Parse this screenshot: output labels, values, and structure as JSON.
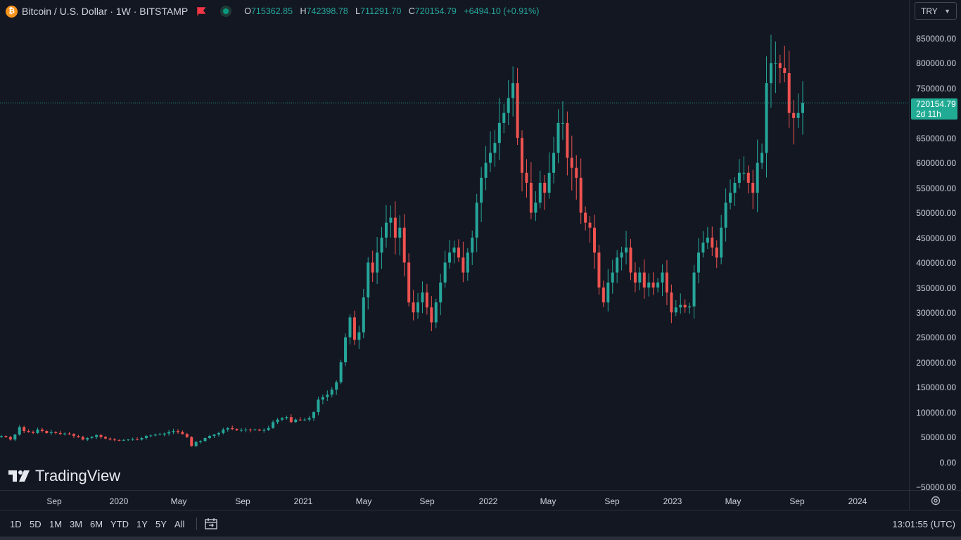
{
  "header": {
    "symbol_title": "Bitcoin / U.S. Dollar · 1W · BITSTAMP",
    "ohlc": [
      {
        "key": "O",
        "value": "715362.85"
      },
      {
        "key": "H",
        "value": "742398.78"
      },
      {
        "key": "L",
        "value": "711291.70"
      },
      {
        "key": "C",
        "value": "720154.79"
      }
    ],
    "change": "+6494.10 (+0.91%)",
    "currency": "TRY"
  },
  "price_axis": {
    "labels": [
      "850000.00",
      "800000.00",
      "750000.00",
      "700000.00",
      "650000.00",
      "600000.00",
      "550000.00",
      "500000.00",
      "450000.00",
      "400000.00",
      "350000.00",
      "300000.00",
      "250000.00",
      "200000.00",
      "150000.00",
      "100000.00",
      "50000.00",
      "0.00",
      "−50000.00"
    ],
    "current_price": "720154.79",
    "countdown": "2d 11h"
  },
  "time_axis": {
    "labels": [
      "Sep",
      "2020",
      "May",
      "Sep",
      "2021",
      "May",
      "Sep",
      "2022",
      "May",
      "Sep",
      "2023",
      "May",
      "Sep",
      "2024"
    ]
  },
  "watermark": "TradingView",
  "bottom_bar": {
    "ranges": [
      "1D",
      "5D",
      "1M",
      "3M",
      "6M",
      "YTD",
      "1Y",
      "5Y",
      "All"
    ],
    "clock": "13:01:55 (UTC)"
  },
  "colors": {
    "up": "#26a69a",
    "down": "#ef5350",
    "background": "#131722",
    "price_tag": "#22ab94"
  },
  "chart_data": {
    "type": "candlestick",
    "interval": "1W",
    "value_unit": "TRY",
    "ylim": [
      -50000,
      850000
    ],
    "series": [
      {
        "name": "Bitcoin / U.S. Dollar",
        "approx_close": [
          52000,
          50000,
          45000,
          55000,
          70000,
          62000,
          60000,
          58000,
          65000,
          62000,
          58000,
          60000,
          58000,
          56000,
          57000,
          56000,
          52000,
          50000,
          45000,
          48000,
          50000,
          54000,
          50000,
          47000,
          45000,
          44000,
          43000,
          44000,
          45000,
          46000,
          45000,
          48000,
          52000,
          53000,
          55000,
          55000,
          57000,
          60000,
          62000,
          60000,
          56000,
          50000,
          32000,
          40000,
          42000,
          48000,
          52000,
          55000,
          58000,
          65000,
          68000,
          66000,
          64000,
          64000,
          65000,
          64000,
          65000,
          63000,
          64000,
          68000,
          80000,
          85000,
          88000,
          90000,
          80000,
          85000,
          84000,
          85000,
          88000,
          100000,
          125000,
          130000,
          135000,
          145000,
          160000,
          200000,
          250000,
          290000,
          245000,
          260000,
          330000,
          400000,
          380000,
          420000,
          450000,
          480000,
          490000,
          450000,
          470000,
          400000,
          320000,
          300000,
          320000,
          340000,
          310000,
          280000,
          320000,
          360000,
          400000,
          420000,
          430000,
          410000,
          380000,
          420000,
          450000,
          520000,
          570000,
          600000,
          620000,
          640000,
          680000,
          700000,
          730000,
          760000,
          650000,
          580000,
          560000,
          500000,
          520000,
          560000,
          540000,
          580000,
          620000,
          680000,
          680000,
          610000,
          590000,
          570000,
          500000,
          480000,
          470000,
          420000,
          350000,
          320000,
          360000,
          380000,
          410000,
          420000,
          430000,
          380000,
          360000,
          380000,
          350000,
          360000,
          350000,
          360000,
          380000,
          340000,
          300000,
          310000,
          315000,
          310000,
          312000,
          380000,
          420000,
          440000,
          450000,
          430000,
          410000,
          470000,
          520000,
          540000,
          560000,
          580000,
          580000,
          560000,
          540000,
          600000,
          620000,
          760000,
          800000,
          800000,
          790000,
          780000,
          700000,
          690000,
          700000,
          720154
        ]
      }
    ]
  }
}
